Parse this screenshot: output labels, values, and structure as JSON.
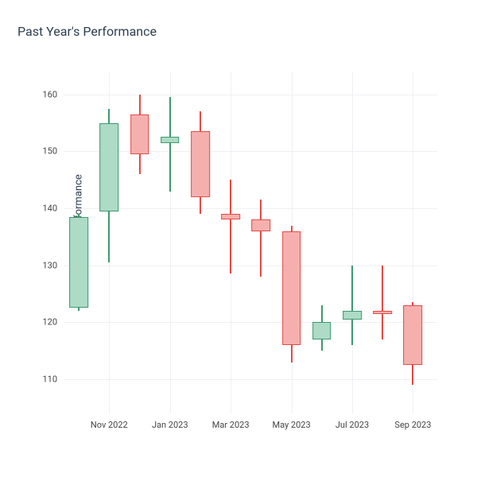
{
  "title": "Past Year's Performance",
  "y_axis": {
    "label": "A's Past Year's Performance",
    "min": 104,
    "max": 164,
    "ticks": [
      110,
      120,
      130,
      140,
      150,
      160
    ],
    "label_fontsize": 13,
    "tick_fontsize": 11
  },
  "x_axis": {
    "ticks": [
      {
        "pos": 1,
        "label": "Nov 2022"
      },
      {
        "pos": 3,
        "label": "Jan 2023"
      },
      {
        "pos": 5,
        "label": "Mar 2023"
      },
      {
        "pos": 7,
        "label": "May 2023"
      },
      {
        "pos": 9,
        "label": "Jul 2023"
      },
      {
        "pos": 11,
        "label": "Sep 2023"
      }
    ],
    "min": -0.5,
    "max": 11.8,
    "tick_fontsize": 11
  },
  "colors": {
    "up_fill": "#addbc5",
    "up_line": "#3d9970",
    "down_fill": "#f5b0ae",
    "down_line": "#e64a45",
    "grid": "#eef0f3",
    "title": "#2d3e50",
    "background": "#ffffff"
  },
  "candle_width": 0.62,
  "candles": [
    {
      "x": 0,
      "open": 122.5,
      "close": 138.5,
      "low": 122.0,
      "high": 139.0,
      "dir": "up"
    },
    {
      "x": 1,
      "open": 139.5,
      "close": 155.0,
      "low": 130.5,
      "high": 157.5,
      "dir": "up"
    },
    {
      "x": 2,
      "open": 156.5,
      "close": 149.5,
      "low": 146.0,
      "high": 160.0,
      "dir": "down"
    },
    {
      "x": 3,
      "open": 152.5,
      "close": 151.5,
      "low": 143.0,
      "high": 159.5,
      "dir": "up"
    },
    {
      "x": 4,
      "open": 153.5,
      "close": 142.0,
      "low": 139.0,
      "high": 157.0,
      "dir": "down"
    },
    {
      "x": 5,
      "open": 139.0,
      "close": 138.0,
      "low": 128.5,
      "high": 145.0,
      "dir": "down"
    },
    {
      "x": 6,
      "open": 138.0,
      "close": 136.0,
      "low": 128.0,
      "high": 141.5,
      "dir": "down"
    },
    {
      "x": 7,
      "open": 136.0,
      "close": 116.0,
      "low": 113.0,
      "high": 137.0,
      "dir": "down"
    },
    {
      "x": 8,
      "open": 117.0,
      "close": 120.0,
      "low": 115.0,
      "high": 123.0,
      "dir": "up"
    },
    {
      "x": 9,
      "open": 120.5,
      "close": 122.0,
      "low": 116.0,
      "high": 130.0,
      "dir": "up"
    },
    {
      "x": 10,
      "open": 122.0,
      "close": 121.5,
      "low": 117.0,
      "high": 130.0,
      "dir": "down"
    },
    {
      "x": 11,
      "open": 123.0,
      "close": 112.5,
      "low": 109.0,
      "high": 123.5,
      "dir": "down"
    }
  ]
}
